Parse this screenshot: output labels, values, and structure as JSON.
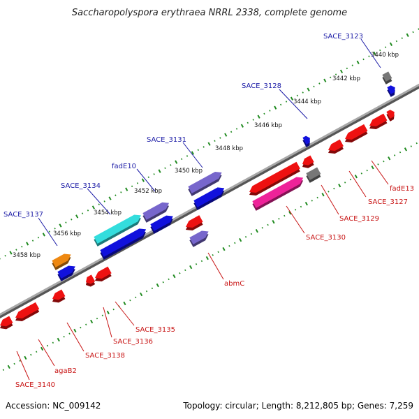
{
  "title": "Saccharopolyspora erythraea NRRL 2338, complete genome",
  "footer": {
    "accession": "Accession: NC_009142",
    "summary": "Topology: circular; Length: 8,212,805 bp; Genes: 7,259"
  },
  "ticks": [
    "3440 kbp",
    "3442 kbp",
    "3444 kbp",
    "3446 kbp",
    "3448 kbp",
    "3450 kbp",
    "3452 kbp",
    "3454 kbp",
    "3456 kbp",
    "3458 kbp"
  ],
  "labels_top": [
    "SACE_3123",
    "SACE_3128",
    "SACE_3131",
    "fadE10",
    "SACE_3134",
    "SACE_3137"
  ],
  "labels_bottom": [
    "fadE13",
    "SACE_3127",
    "SACE_3129",
    "SACE_3130",
    "abmC",
    "SACE_3135",
    "SACE_3136",
    "SACE_3138",
    "agaB2",
    "SACE_3140"
  ],
  "colors": {
    "backbone": "#8a8a8a",
    "red": "#ee1111",
    "blue": "#1111dd",
    "purple": "#7766cc",
    "cyan": "#33dddd",
    "magenta": "#ee2299",
    "orange": "#ee8811",
    "gray": "#777777",
    "track": "#1f8a1f"
  }
}
